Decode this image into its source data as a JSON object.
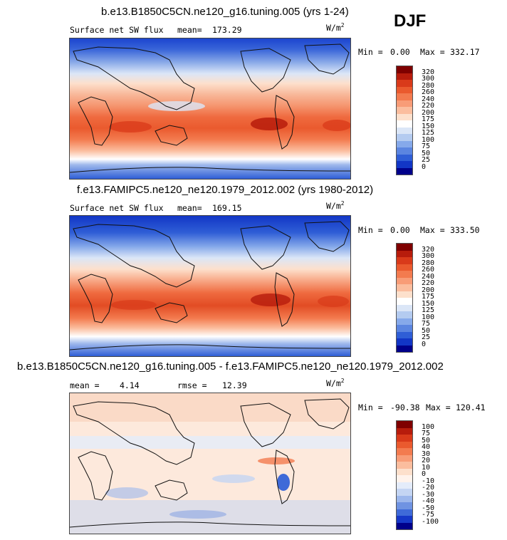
{
  "season": "DJF",
  "units": {
    "base": "W/m",
    "exp": "2"
  },
  "panels": [
    {
      "title": "b.e13.B1850C5CN.ne120_g16.tuning.005 (yrs 1-24)",
      "field": "Surface net SW flux",
      "mean_label": "mean=",
      "mean": "173.29",
      "min_label": "Min =",
      "min": "0.00",
      "max_label": "Max =",
      "max": "332.17",
      "levels": [
        "320",
        "300",
        "280",
        "260",
        "240",
        "220",
        "200",
        "175",
        "150",
        "125",
        "100",
        "75",
        "50",
        "25",
        "0"
      ]
    },
    {
      "title": "f.e13.FAMIPC5.ne120_ne120.1979_2012.002 (yrs 1980-2012)",
      "field": "Surface net SW flux",
      "mean_label": "mean=",
      "mean": "169.15",
      "min_label": "Min =",
      "min": "0.00",
      "max_label": "Max =",
      "max": "333.50",
      "levels": [
        "320",
        "300",
        "280",
        "260",
        "240",
        "220",
        "200",
        "175",
        "150",
        "125",
        "100",
        "75",
        "50",
        "25",
        "0"
      ]
    },
    {
      "title": "b.e13.B1850C5CN.ne120_g16.tuning.005 - f.e13.FAMIPC5.ne120_ne120.1979_2012.002",
      "mean_label": "mean =",
      "mean": "4.14",
      "rmse_label": "rmse =",
      "rmse": "12.39",
      "min_label": "Min =",
      "min": "-90.38",
      "max_label": "Max =",
      "max": "120.41",
      "levels": [
        "100",
        "75",
        "50",
        "40",
        "30",
        "20",
        "10",
        "0",
        "-10",
        "-20",
        "-30",
        "-40",
        "-50",
        "-75",
        "-100"
      ]
    }
  ],
  "colors": {
    "abs_scale": [
      "#7f0000",
      "#b71c0c",
      "#d93a1a",
      "#ea5a2e",
      "#f37b4f",
      "#f89c77",
      "#fbbd9e",
      "#fde0cc",
      "#ffffff",
      "#dbe6f7",
      "#b4cbf0",
      "#86a9ea",
      "#5b85e0",
      "#2f5ed6",
      "#1236c6",
      "#00008a"
    ],
    "diff_scale": [
      "#7f0000",
      "#b71c0c",
      "#d93a1a",
      "#ea5a2e",
      "#f37b4f",
      "#f89c77",
      "#fbbd9e",
      "#fde0cc",
      "#fff3ec",
      "#e4ecfa",
      "#c4d5f3",
      "#9cb7ec",
      "#6f93e2",
      "#3f6ad8",
      "#1638c8",
      "#00008a"
    ]
  }
}
